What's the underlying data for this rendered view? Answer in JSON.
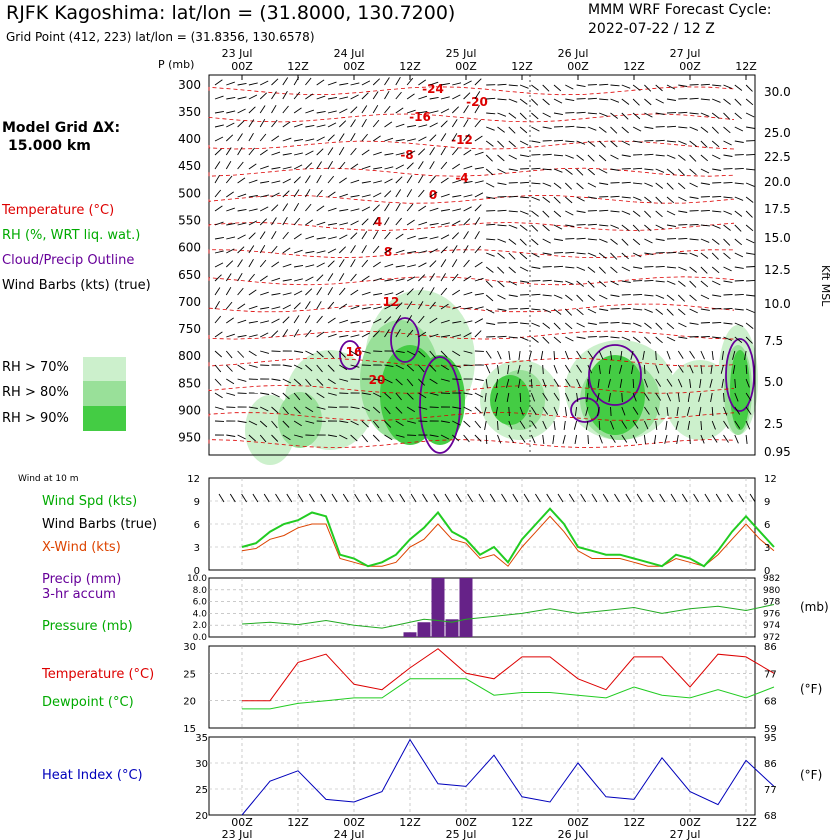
{
  "header": {
    "title": "RJFK Kagoshima:  lat/lon = (31.8000, 130.7200)",
    "grid_point": "Grid Point (412, 223) lat/lon = (31.8356, 130.6578)",
    "model_line1": "MMM WRF Forecast Cycle:",
    "model_line2": "2022-07-22 / 12  Z"
  },
  "colors": {
    "temperature": "#dd0000",
    "rh": "#00aa00",
    "cloud": "#660099",
    "heat_index": "#0000bb",
    "rh70": "#ccf0cc",
    "rh80": "#99e099",
    "rh90": "#44cc44"
  },
  "left_legend": {
    "model_grid": "Model Grid ΔX:",
    "grid_size": "15.000 km",
    "temperature": "Temperature (°C)",
    "rh": "RH (%, WRT liq. wat.)",
    "cloud": "Cloud/Precip Outline",
    "wind": "Wind Barbs (kts) (true)",
    "rh70": "RH > 70%",
    "rh80": "RH > 80%",
    "rh90": "RH > 90%"
  },
  "time_axis": {
    "hour_labels": [
      "00Z",
      "12Z",
      "00Z",
      "12Z",
      "00Z",
      "12Z",
      "00Z",
      "12Z",
      "00Z",
      "12Z"
    ],
    "date_labels": [
      "23 Jul",
      "24 Jul",
      "25 Jul",
      "26 Jul",
      "27 Jul"
    ]
  },
  "cross_section": {
    "y_axis_title": "P (mb)",
    "pressure_levels": [
      "300",
      "350",
      "400",
      "450",
      "500",
      "550",
      "600",
      "650",
      "700",
      "750",
      "800",
      "850",
      "900",
      "950"
    ],
    "height_labels": [
      "30.0",
      "25.0",
      "22.5",
      "20.0",
      "17.5",
      "15.0",
      "12.5",
      "10.0",
      "7.5",
      "5.0",
      "2.5",
      "0.95"
    ],
    "height_axis_title": "Kft MSL",
    "temperature_contour_labels": [
      "-24",
      "-20",
      "-16",
      "-12",
      "-8",
      "-4",
      "0",
      "4",
      "8",
      "12",
      "16",
      "20"
    ]
  },
  "surface_panels": {
    "wind_title": "Wind at 10 m",
    "wind_speed_label": "Wind Spd (kts)",
    "wind_barbs_label": "Wind Barbs (true)",
    "xwind_label": "X-Wind (kts)",
    "precip_label": "Precip (mm)",
    "precip_accum": "3-hr accum",
    "pressure_label": "Pressure (mb)",
    "pressure_units": "(mb)",
    "temperature_label": "Temperature (°C)",
    "dewpoint_label": "Dewpoint (°C)",
    "fahrenheit_units": "(°F)",
    "heat_index_label": "Heat Index (°C)"
  },
  "chart_data": [
    {
      "type": "line",
      "title": "Wind at 10 m",
      "x_hours": [
        0,
        3,
        6,
        9,
        12,
        15,
        18,
        21,
        24,
        27,
        30,
        33,
        36,
        39,
        42,
        45,
        48,
        51,
        54,
        57,
        60,
        63,
        66,
        69,
        72,
        75,
        78,
        81,
        84,
        87,
        90,
        93,
        96,
        99,
        102,
        105,
        108,
        111,
        114
      ],
      "ylim": [
        0,
        12
      ],
      "y_ticks": [
        "0",
        "3",
        "6",
        "9",
        "12"
      ],
      "series": [
        {
          "name": "Wind Spd (kts)",
          "values": [
            3,
            3.5,
            5,
            6,
            6.5,
            7.5,
            7,
            2,
            1.5,
            0.5,
            1,
            2,
            4,
            5.5,
            7.5,
            5,
            4,
            2,
            3,
            1,
            4,
            6,
            8,
            6,
            3,
            2.5,
            2,
            2,
            1.5,
            1,
            0.5,
            2,
            1.5,
            0.5,
            2.5,
            5,
            7,
            5,
            3
          ]
        },
        {
          "name": "X-Wind (kts)",
          "values": [
            2.5,
            2.8,
            4,
            4.5,
            5.5,
            6,
            6,
            1.5,
            1,
            0.5,
            0.5,
            1,
            3,
            4,
            6,
            4,
            3.5,
            1.5,
            2,
            0.5,
            3,
            5,
            7,
            5,
            2.5,
            1.5,
            1.5,
            1.5,
            1,
            0.5,
            0.5,
            1.5,
            1,
            0.5,
            2,
            4,
            6,
            4,
            2.5
          ]
        }
      ]
    },
    {
      "type": "bar+line",
      "title": "Precip / Pressure",
      "x_hours": [
        0,
        6,
        12,
        18,
        24,
        30,
        33,
        36,
        39,
        42,
        45,
        48,
        54,
        60,
        66,
        72,
        78,
        84,
        90,
        96,
        102,
        108,
        114
      ],
      "ylim": [
        0,
        10
      ],
      "y_ticks": [
        "0.0",
        "2.0",
        "4.0",
        "6.0",
        "8.0",
        "10.0"
      ],
      "pressure_ticks": [
        "972",
        "974",
        "976",
        "978",
        "980",
        "982"
      ],
      "precip": [
        {
          "hour": 36,
          "mm": 0.8
        },
        {
          "hour": 39,
          "mm": 2.5
        },
        {
          "hour": 42,
          "mm": 10
        },
        {
          "hour": 45,
          "mm": 3
        },
        {
          "hour": 48,
          "mm": 10
        }
      ],
      "pressure": [
        974.2,
        974.5,
        974.1,
        974.8,
        974,
        973.5,
        974,
        974.5,
        975,
        974.8,
        974.5,
        975,
        975.5,
        976,
        976.8,
        976,
        976.5,
        977,
        976,
        976.8,
        977.2,
        976.5,
        977.5
      ]
    },
    {
      "type": "line",
      "title": "Temperature / Dewpoint",
      "x_hours": [
        0,
        6,
        12,
        18,
        24,
        30,
        36,
        42,
        48,
        54,
        60,
        66,
        72,
        78,
        84,
        90,
        96,
        102,
        108,
        114
      ],
      "ylim": [
        15,
        30
      ],
      "y_ticks": [
        "15",
        "20",
        "25",
        "30"
      ],
      "f_ticks": [
        "59",
        "68",
        "77",
        "86"
      ],
      "series": [
        {
          "name": "Temperature (°C)",
          "values": [
            20,
            20,
            27,
            28.5,
            23,
            22,
            26,
            29.5,
            25,
            24,
            28,
            28,
            24,
            22,
            28,
            28,
            22.5,
            28.5,
            28,
            25
          ]
        },
        {
          "name": "Dewpoint (°C)",
          "values": [
            18.5,
            18.5,
            19.5,
            20,
            20.5,
            20.5,
            24,
            24,
            24,
            21,
            21.5,
            21.5,
            21,
            20.5,
            22.5,
            21,
            20.5,
            22,
            20.5,
            22.5
          ]
        }
      ]
    },
    {
      "type": "line",
      "title": "Heat Index",
      "x_hours": [
        0,
        6,
        12,
        18,
        24,
        30,
        36,
        42,
        48,
        54,
        60,
        66,
        72,
        78,
        84,
        90,
        96,
        102,
        108,
        114
      ],
      "ylim": [
        20,
        35
      ],
      "y_ticks": [
        "20",
        "25",
        "30",
        "35"
      ],
      "f_ticks": [
        "68",
        "77",
        "86",
        "95"
      ],
      "series": [
        {
          "name": "Heat Index (°C)",
          "values": [
            20,
            26.5,
            28.5,
            23,
            22.5,
            24.5,
            34.5,
            26,
            25.5,
            31.5,
            23.5,
            22.5,
            30,
            23.5,
            23,
            31,
            24.5,
            22,
            30.5,
            25.5
          ]
        }
      ]
    }
  ]
}
